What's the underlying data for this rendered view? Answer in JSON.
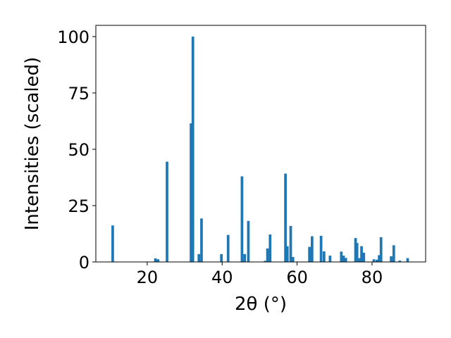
{
  "chart_data": {
    "type": "bar",
    "xlabel": "2θ (°)",
    "ylabel": "Intensities (scaled)",
    "xlim": [
      6.3,
      94.3
    ],
    "ylim": [
      0,
      105
    ],
    "xticks": [
      20,
      40,
      60,
      80
    ],
    "yticks": [
      0,
      25,
      50,
      75,
      100
    ],
    "grid": false,
    "color": "#1f77b4",
    "bar_width": 0.7,
    "series": [
      {
        "x": [
          10.8,
          22.2,
          22.9,
          25.3,
          31.7,
          32.2,
          33.8,
          34.5,
          39.8,
          41.6,
          45.3,
          46.0,
          47.0,
          51.5,
          52.1,
          52.8,
          56.9,
          57.4,
          58.3,
          58.9,
          63.3,
          64.0,
          66.4,
          67.2,
          68.8,
          71.8,
          72.4,
          73.0,
          75.6,
          76.0,
          76.7,
          77.2,
          77.8,
          80.5,
          81.3,
          81.9,
          82.4,
          85.1,
          85.8,
          87.4,
          89.5
        ],
        "values": [
          16.2,
          1.6,
          1.2,
          44.5,
          61.5,
          100.0,
          3.5,
          19.3,
          3.5,
          12.0,
          38.0,
          3.5,
          18.2,
          0.5,
          6.0,
          12.2,
          39.2,
          7.0,
          16.0,
          2.2,
          6.7,
          11.4,
          11.6,
          4.7,
          2.8,
          4.6,
          2.8,
          1.8,
          10.6,
          8.4,
          1.7,
          7.0,
          4.1,
          1.2,
          1.0,
          3.0,
          11.0,
          2.5,
          7.4,
          0.6,
          1.7
        ]
      }
    ]
  }
}
